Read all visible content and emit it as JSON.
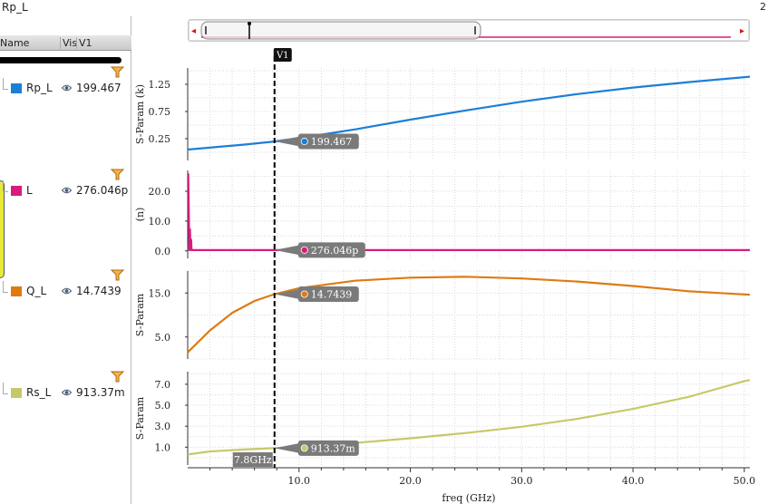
{
  "window": {
    "title": "Rp_L",
    "corner_number": "2"
  },
  "browser": {
    "columns": {
      "name": "Name",
      "vis": "Vis",
      "v1": "V1"
    },
    "signals": [
      {
        "name": "Rp_L",
        "value": "199.467",
        "color": "#1c7fd6"
      },
      {
        "name": "L",
        "value": "276.046p",
        "color": "#d81b7d"
      },
      {
        "name": "Q_L",
        "value": "14.7439",
        "color": "#df7a12"
      },
      {
        "name": "Rs_L",
        "value": "913.37m",
        "color": "#c6c96a"
      }
    ],
    "icons": {
      "visibility": "eye-icon",
      "filter": "filter-icon"
    }
  },
  "scroller": {
    "left_arrow": "◂",
    "right_arrow": "▸",
    "icon": "scroll-arrow-icon"
  },
  "marker": {
    "label": "V1",
    "x_value": 7.8,
    "x_label": "7.8GHz"
  },
  "chart_data": {
    "type": "line",
    "xlabel": "freq (GHz)",
    "xlim": [
      0,
      50.5
    ],
    "x_ticks": [
      10.0,
      20.0,
      30.0,
      40.0,
      50.0
    ],
    "x_tick_labels": [
      "10.0",
      "20.0",
      "30.0",
      "40.0",
      "50.0"
    ],
    "grid": true,
    "panels": [
      {
        "series_name": "Rp_L",
        "ylabel": "S-Param (k)",
        "ylim": [
          -0.15,
          1.55
        ],
        "y_ticks": [
          0.25,
          0.75,
          1.25
        ],
        "y_tick_labels": [
          "0.25",
          "0.75",
          "1.25"
        ],
        "color": "#1c7fd6",
        "x": [
          0,
          5,
          7.8,
          10,
          15,
          20,
          25,
          30,
          35,
          40,
          45,
          50.5
        ],
        "y": [
          0.05,
          0.14,
          0.199,
          0.26,
          0.42,
          0.6,
          0.77,
          0.93,
          1.07,
          1.19,
          1.29,
          1.39
        ],
        "marker_label": "199.467"
      },
      {
        "series_name": "L",
        "ylabel": "(n)",
        "ylim": [
          -2.5,
          27
        ],
        "y_ticks": [
          0.0,
          10.0,
          20.0
        ],
        "y_tick_labels": [
          "0.0",
          "10.0",
          "20.0"
        ],
        "color": "#d81b7d",
        "x": [
          0.05,
          0.15,
          0.2,
          0.25,
          0.3,
          0.35,
          0.4,
          0.6,
          1,
          5,
          10,
          20,
          30,
          40,
          50.5
        ],
        "y": [
          26,
          0,
          7.5,
          0,
          4,
          0.3,
          0.28,
          0.28,
          0.28,
          0.28,
          0.28,
          0.28,
          0.28,
          0.28,
          0.28
        ],
        "marker_label": "276.046p"
      },
      {
        "series_name": "Q_L",
        "ylabel": "S-Param",
        "ylim": [
          0,
          20
        ],
        "y_ticks": [
          5.0,
          15.0
        ],
        "y_tick_labels": [
          "5.0",
          "15.0"
        ],
        "color": "#df7a12",
        "x": [
          0,
          2,
          4,
          6,
          7.8,
          10,
          15,
          20,
          25,
          30,
          35,
          40,
          45,
          50.5
        ],
        "y": [
          1.5,
          6.5,
          10.5,
          13.2,
          14.74,
          16.1,
          17.8,
          18.5,
          18.7,
          18.3,
          17.6,
          16.6,
          15.4,
          14.6
        ],
        "marker_label": "14.7439"
      },
      {
        "series_name": "Rs_L",
        "ylabel": "S-Param",
        "ylim": [
          -0.7,
          8.2
        ],
        "y_ticks": [
          1.0,
          3.0,
          5.0,
          7.0
        ],
        "y_tick_labels": [
          "1.0",
          "3.0",
          "5.0",
          "7.0"
        ],
        "color": "#c6c96a",
        "x": [
          0,
          2,
          5,
          7.8,
          10,
          15,
          20,
          25,
          30,
          35,
          40,
          45,
          50,
          50.5
        ],
        "y": [
          0.3,
          0.6,
          0.78,
          0.91,
          1.05,
          1.4,
          1.85,
          2.35,
          2.95,
          3.7,
          4.65,
          5.8,
          7.3,
          7.4
        ],
        "marker_label": "913.37m"
      }
    ]
  }
}
